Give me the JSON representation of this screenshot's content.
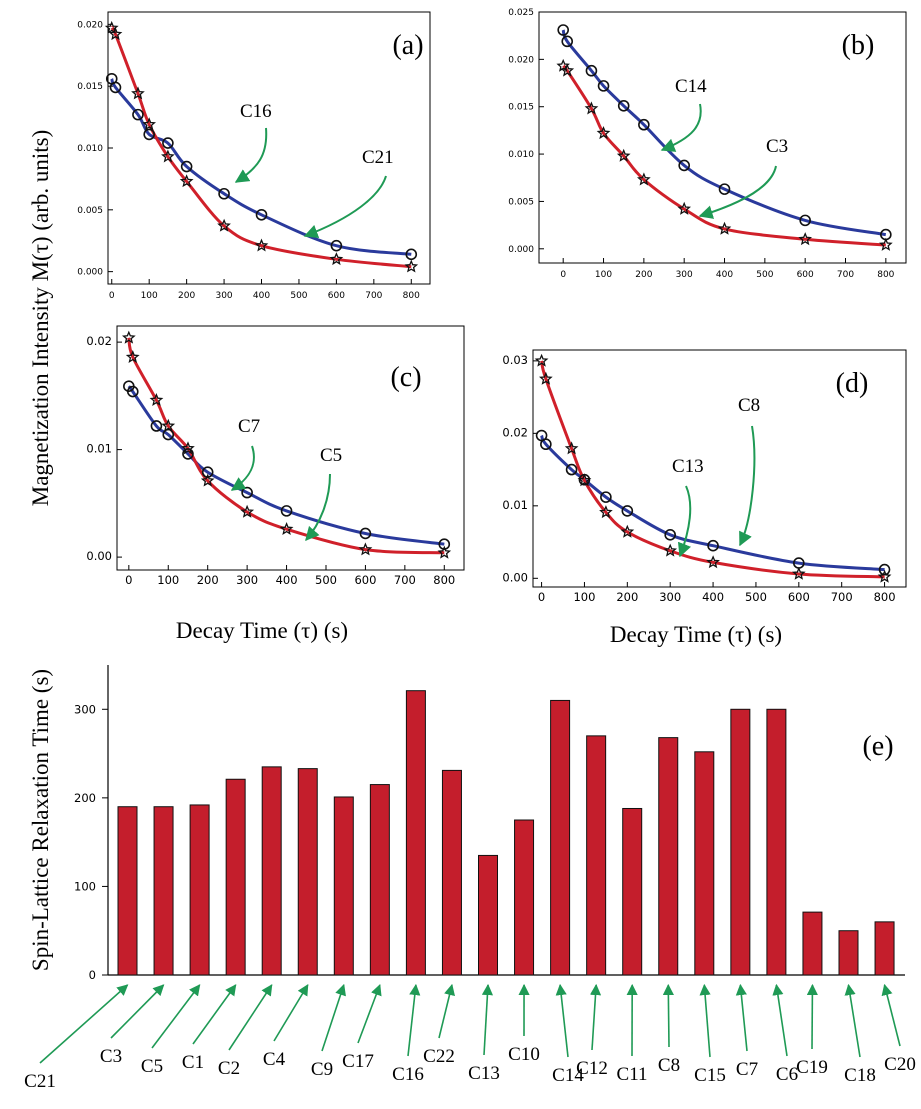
{
  "figure": {
    "ylabel_shared": "Magnetization Intensity M(τ) (arb. units)",
    "xlabel_left": "Decay Time (τ) (s)",
    "xlabel_right": "Decay Time (τ) (s)"
  },
  "colors": {
    "red": "#d0202a",
    "blue": "#2a3a9c",
    "bar": "#c41e2c",
    "arrow": "#1f9a55"
  },
  "chart_data": [
    {
      "id": "a",
      "type": "line",
      "panel_label": "(a)",
      "xlim": [
        -10,
        850
      ],
      "ylim": [
        -0.001,
        0.021
      ],
      "xticks": [
        0,
        100,
        200,
        300,
        400,
        500,
        600,
        700,
        800
      ],
      "xtick_labels": [
        "0",
        "100",
        "200",
        "300",
        "400",
        "500",
        "600",
        "700",
        "800"
      ],
      "yticks": [
        0,
        0.005,
        0.01,
        0.015,
        0.02
      ],
      "ytick_labels": [
        "0.000",
        "0.005",
        "0.010",
        "0.015",
        "0.020"
      ],
      "series": [
        {
          "name": "C16",
          "color": "blue",
          "marker": "circle",
          "x": [
            0,
            10,
            70,
            100,
            150,
            200,
            300,
            400,
            600,
            800
          ],
          "y": [
            0.0156,
            0.0149,
            0.0127,
            0.0111,
            0.0104,
            0.0085,
            0.0063,
            0.0046,
            0.0021,
            0.0014
          ]
        },
        {
          "name": "C21",
          "color": "red",
          "marker": "star",
          "x": [
            0,
            10,
            70,
            100,
            150,
            200,
            300,
            400,
            600,
            800
          ],
          "y": [
            0.0197,
            0.0192,
            0.0144,
            0.0119,
            0.0093,
            0.0073,
            0.0037,
            0.0021,
            0.001,
            0.0004
          ]
        }
      ]
    },
    {
      "id": "b",
      "type": "line",
      "panel_label": "(b)",
      "xlim": [
        -60,
        850
      ],
      "ylim": [
        -0.0015,
        0.025
      ],
      "xticks": [
        0,
        100,
        200,
        300,
        400,
        500,
        600,
        700,
        800
      ],
      "xtick_labels": [
        "0",
        "100",
        "200",
        "300",
        "400",
        "500",
        "600",
        "700",
        "800"
      ],
      "yticks": [
        0,
        0.005,
        0.01,
        0.015,
        0.02,
        0.025
      ],
      "ytick_labels": [
        "0.000",
        "0.005",
        "0.010",
        "0.015",
        "0.020",
        "0.025"
      ],
      "series": [
        {
          "name": "C14",
          "color": "blue",
          "marker": "circle",
          "x": [
            0,
            10,
            70,
            100,
            150,
            200,
            300,
            400,
            600,
            800
          ],
          "y": [
            0.0231,
            0.0219,
            0.0188,
            0.0172,
            0.0151,
            0.0131,
            0.0088,
            0.0063,
            0.003,
            0.0015
          ]
        },
        {
          "name": "C3",
          "color": "red",
          "marker": "star",
          "x": [
            0,
            10,
            70,
            100,
            150,
            200,
            300,
            400,
            600,
            800
          ],
          "y": [
            0.0193,
            0.0188,
            0.0148,
            0.0122,
            0.0098,
            0.0073,
            0.0042,
            0.0021,
            0.001,
            0.0004
          ]
        }
      ]
    },
    {
      "id": "c",
      "type": "line",
      "panel_label": "(c)",
      "xlim": [
        -30,
        850
      ],
      "ylim": [
        -0.0012,
        0.0215
      ],
      "xticks": [
        0,
        100,
        200,
        300,
        400,
        500,
        600,
        700,
        800
      ],
      "xtick_labels": [
        "0",
        "100",
        "200",
        "300",
        "400",
        "500",
        "600",
        "700",
        "800"
      ],
      "yticks": [
        0,
        0.01,
        0.02
      ],
      "ytick_labels": [
        "0.00",
        "0.01",
        "0.02"
      ],
      "series": [
        {
          "name": "C7",
          "color": "blue",
          "marker": "circle",
          "x": [
            0,
            10,
            70,
            100,
            150,
            200,
            300,
            400,
            600,
            800
          ],
          "y": [
            0.0159,
            0.0154,
            0.0122,
            0.0114,
            0.0096,
            0.0079,
            0.006,
            0.0043,
            0.0022,
            0.0012
          ]
        },
        {
          "name": "C5",
          "color": "red",
          "marker": "star",
          "x": [
            0,
            10,
            70,
            100,
            150,
            200,
            300,
            400,
            600,
            800
          ],
          "y": [
            0.0204,
            0.0186,
            0.0146,
            0.0122,
            0.0101,
            0.0071,
            0.0042,
            0.0026,
            0.0007,
            0.0004
          ]
        }
      ]
    },
    {
      "id": "d",
      "type": "line",
      "panel_label": "(d)",
      "xlim": [
        -20,
        850
      ],
      "ylim": [
        -0.0012,
        0.0315
      ],
      "xticks": [
        0,
        100,
        200,
        300,
        400,
        500,
        600,
        700,
        800
      ],
      "xtick_labels": [
        "0",
        "100",
        "200",
        "300",
        "400",
        "500",
        "600",
        "700",
        "800"
      ],
      "yticks": [
        0,
        0.01,
        0.02,
        0.03
      ],
      "ytick_labels": [
        "0.00",
        "0.01",
        "0.02",
        "0.03"
      ],
      "series": [
        {
          "name": "C8",
          "color": "blue",
          "marker": "circle",
          "x": [
            0,
            10,
            70,
            100,
            150,
            200,
            300,
            400,
            600,
            800
          ],
          "y": [
            0.0197,
            0.0185,
            0.015,
            0.0136,
            0.0112,
            0.0093,
            0.006,
            0.0045,
            0.0021,
            0.0012
          ]
        },
        {
          "name": "C13",
          "color": "red",
          "marker": "star",
          "x": [
            0,
            10,
            70,
            100,
            150,
            200,
            300,
            400,
            600,
            800
          ],
          "y": [
            0.03,
            0.0275,
            0.0179,
            0.0135,
            0.0091,
            0.0064,
            0.0038,
            0.0022,
            0.0006,
            0.0002
          ]
        }
      ]
    },
    {
      "id": "e",
      "type": "bar",
      "panel_label": "(e)",
      "ylabel": "Spin-Lattice Relaxation Time (s)",
      "ylim": [
        0,
        350
      ],
      "yticks": [
        0,
        100,
        200,
        300
      ],
      "ytick_labels": [
        "0",
        "100",
        "200",
        "300"
      ],
      "categories": [
        "C21",
        "C3",
        "C5",
        "C1",
        "C2",
        "C4",
        "C9",
        "C17",
        "C16",
        "C22",
        "C13",
        "C10",
        "C14",
        "C12",
        "C11",
        "C8",
        "C15",
        "C7",
        "C6",
        "C19",
        "C18",
        "C20"
      ],
      "values": [
        190,
        190,
        192,
        221,
        235,
        233,
        201,
        215,
        321,
        231,
        135,
        175,
        310,
        270,
        188,
        268,
        252,
        300,
        300,
        71,
        50,
        60
      ]
    }
  ]
}
